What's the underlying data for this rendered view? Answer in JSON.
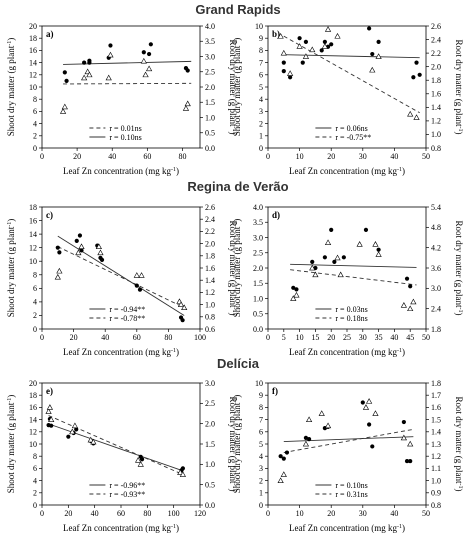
{
  "figure": {
    "sites": [
      "Grand Rapids",
      "Regina de Verão",
      "Delícia"
    ],
    "xlabel": "Leaf Zn concentration (mg kg",
    "xlabel_sup": "-1",
    "xlabel_end": ")",
    "ylabel_left": "Shoot dry matter (g plant",
    "ylabel_left_sup": "-1",
    "ylabel_left_end": ")",
    "ylabel_right": "Root dry matter (g plant",
    "ylabel_right_sup": "-1",
    "ylabel_right_end": ")"
  },
  "chart_data": [
    {
      "panel": "a)",
      "type": "scatter",
      "site": "Grand Rapids",
      "xlim": [
        0,
        90
      ],
      "xticks": [
        0,
        20,
        40,
        60,
        80
      ],
      "ylim": [
        0,
        20
      ],
      "yticks": [
        0,
        2,
        4,
        6,
        8,
        10,
        12,
        14,
        16,
        18,
        20
      ],
      "y2lim": [
        0,
        4.0
      ],
      "y2ticks": [
        "0.0",
        "0.5",
        "1.0",
        "1.5",
        "2.0",
        "2.5",
        "3.0",
        "3.5",
        "4.0"
      ],
      "shoot": {
        "marker": "filled-circle",
        "points": [
          [
            13,
            12.4
          ],
          [
            14,
            11.0
          ],
          [
            24,
            14.0
          ],
          [
            27,
            14.3
          ],
          [
            27,
            14.0
          ],
          [
            38,
            14.8
          ],
          [
            39,
            16.8
          ],
          [
            58,
            15.7
          ],
          [
            61,
            15.4
          ],
          [
            62,
            17.0
          ],
          [
            82,
            13.1
          ],
          [
            83,
            12.7
          ]
        ]
      },
      "root": {
        "marker": "open-triangle",
        "points": [
          [
            12,
            1.2
          ],
          [
            13,
            1.35
          ],
          [
            24,
            2.3
          ],
          [
            26,
            2.5
          ],
          [
            27,
            2.4
          ],
          [
            38,
            2.3
          ],
          [
            39,
            3.05
          ],
          [
            58,
            2.85
          ],
          [
            59,
            2.4
          ],
          [
            61,
            2.6
          ],
          [
            82,
            1.3
          ],
          [
            83,
            1.45
          ]
        ]
      },
      "fits": [
        {
          "style": "dashed",
          "axis": "right",
          "label": "r = 0.01ns",
          "from": [
            12,
            2.1
          ],
          "to": [
            85,
            2.12
          ]
        },
        {
          "style": "solid",
          "axis": "left",
          "label": "r = 0.10ns",
          "from": [
            12,
            13.7
          ],
          "to": [
            85,
            14.2
          ]
        }
      ]
    },
    {
      "panel": "b)",
      "type": "scatter",
      "site": "Grand Rapids",
      "xlim": [
        0,
        50
      ],
      "xticks": [
        0,
        10,
        20,
        30,
        40,
        50
      ],
      "ylim": [
        0,
        10
      ],
      "yticks": [
        0,
        1,
        2,
        3,
        4,
        5,
        6,
        7,
        8,
        9,
        10
      ],
      "y2lim": [
        0.8,
        2.6
      ],
      "y2ticks": [
        "0.8",
        "1.0",
        "1.2",
        "1.4",
        "1.6",
        "1.8",
        "2.0",
        "2.2",
        "2.4",
        "2.6"
      ],
      "shoot": {
        "marker": "filled-circle",
        "points": [
          [
            5,
            7.0
          ],
          [
            5,
            6.3
          ],
          [
            7,
            5.8
          ],
          [
            10,
            9.0
          ],
          [
            11,
            7.0
          ],
          [
            12,
            8.7
          ],
          [
            17,
            8.0
          ],
          [
            18,
            8.7
          ],
          [
            19,
            8.3
          ],
          [
            20,
            8.5
          ],
          [
            32,
            9.8
          ],
          [
            33,
            7.7
          ],
          [
            35,
            8.7
          ],
          [
            46,
            5.8
          ],
          [
            47,
            7.0
          ],
          [
            48,
            6.0
          ]
        ]
      },
      "root": {
        "marker": "open-triangle",
        "points": [
          [
            4,
            2.45
          ],
          [
            5,
            2.2
          ],
          [
            7,
            1.9
          ],
          [
            10,
            2.3
          ],
          [
            12,
            2.15
          ],
          [
            14,
            2.25
          ],
          [
            18,
            2.3
          ],
          [
            19,
            2.55
          ],
          [
            22,
            2.45
          ],
          [
            33,
            1.95
          ],
          [
            35,
            2.15
          ],
          [
            45,
            1.3
          ],
          [
            47,
            1.25
          ]
        ]
      },
      "fits": [
        {
          "style": "solid",
          "axis": "left",
          "label": "r = 0.06ns",
          "from": [
            5,
            7.65
          ],
          "to": [
            48,
            7.4
          ]
        },
        {
          "style": "dashed",
          "axis": "right",
          "label": "r = -0.75**",
          "from": [
            5,
            2.45
          ],
          "to": [
            48,
            1.32
          ]
        }
      ]
    },
    {
      "panel": "c)",
      "type": "scatter",
      "site": "Regina de Verão",
      "xlim": [
        0,
        100
      ],
      "xticks": [
        0,
        20,
        40,
        60,
        80,
        100
      ],
      "ylim": [
        0,
        18
      ],
      "yticks": [
        0,
        2,
        4,
        6,
        8,
        10,
        12,
        14,
        16,
        18
      ],
      "y2lim": [
        0.6,
        2.6
      ],
      "y2ticks": [
        "0.6",
        "0.8",
        "1.0",
        "1.2",
        "1.4",
        "1.6",
        "1.8",
        "2.0",
        "2.2",
        "2.4",
        "2.6"
      ],
      "shoot": {
        "marker": "filled-circle",
        "points": [
          [
            10,
            12.0
          ],
          [
            11,
            11.3
          ],
          [
            22,
            13.0
          ],
          [
            24,
            13.8
          ],
          [
            25,
            11.6
          ],
          [
            35,
            12.3
          ],
          [
            37,
            10.5
          ],
          [
            38,
            10.2
          ],
          [
            60,
            6.4
          ],
          [
            62,
            5.8
          ],
          [
            88,
            1.7
          ],
          [
            89,
            1.3
          ]
        ]
      },
      "root": {
        "marker": "open-triangle",
        "points": [
          [
            10,
            1.45
          ],
          [
            11,
            1.55
          ],
          [
            23,
            1.85
          ],
          [
            25,
            1.95
          ],
          [
            36,
            1.95
          ],
          [
            37,
            1.85
          ],
          [
            60,
            1.48
          ],
          [
            63,
            1.48
          ],
          [
            87,
            1.05
          ],
          [
            88,
            1.0
          ],
          [
            90,
            0.95
          ]
        ]
      },
      "fits": [
        {
          "style": "solid",
          "axis": "left",
          "label": "r = -0.94**",
          "from": [
            10,
            13.7
          ],
          "to": [
            90,
            2.0
          ]
        },
        {
          "style": "dashed",
          "axis": "right",
          "label": "r = -0.78**",
          "from": [
            10,
            1.95
          ],
          "to": [
            90,
            0.95
          ]
        }
      ]
    },
    {
      "panel": "d)",
      "type": "scatter",
      "site": "Regina de Verão",
      "xlim": [
        0,
        50
      ],
      "xticks": [
        0,
        5,
        10,
        15,
        20,
        25,
        30,
        35,
        40,
        45,
        50
      ],
      "ylim": [
        0.0,
        4.0
      ],
      "yticks": [
        "0.0",
        "0.5",
        "1.0",
        "1.5",
        "2.0",
        "2.5",
        "3.0",
        "3.5",
        "4.0"
      ],
      "y2lim": [
        1.8,
        5.4
      ],
      "y2ticks": [
        "1.8",
        "2.4",
        "3.0",
        "3.6",
        "4.2",
        "4.8",
        "5.4"
      ],
      "shoot": {
        "marker": "filled-circle",
        "points": [
          [
            8,
            1.35
          ],
          [
            9,
            1.3
          ],
          [
            14,
            2.2
          ],
          [
            15,
            2.0
          ],
          [
            18,
            2.35
          ],
          [
            20,
            3.25
          ],
          [
            21,
            2.2
          ],
          [
            24,
            2.35
          ],
          [
            31,
            3.25
          ],
          [
            35,
            2.6
          ],
          [
            44,
            1.65
          ],
          [
            45,
            1.4
          ]
        ]
      },
      "root": {
        "marker": "open-triangle",
        "points": [
          [
            8,
            2.7
          ],
          [
            9,
            2.8
          ],
          [
            14,
            3.6
          ],
          [
            15,
            3.4
          ],
          [
            19,
            4.35
          ],
          [
            22,
            3.9
          ],
          [
            23,
            3.4
          ],
          [
            29,
            4.3
          ],
          [
            34,
            4.3
          ],
          [
            35,
            4.0
          ],
          [
            43,
            2.5
          ],
          [
            45,
            2.4
          ],
          [
            46,
            2.6
          ]
        ]
      },
      "fits": [
        {
          "style": "solid",
          "axis": "left",
          "label": "r = 0.03ns",
          "from": [
            7,
            2.12
          ],
          "to": [
            47,
            2.02
          ]
        },
        {
          "style": "dashed",
          "axis": "right",
          "label": "r = 0.18ns",
          "from": [
            7,
            3.55
          ],
          "to": [
            47,
            3.1
          ]
        }
      ]
    },
    {
      "panel": "e)",
      "type": "scatter",
      "site": "Delícia",
      "xlim": [
        0,
        120
      ],
      "xticks": [
        0,
        20,
        40,
        60,
        80,
        100,
        120
      ],
      "ylim": [
        0,
        20
      ],
      "yticks": [
        0,
        2,
        4,
        6,
        8,
        10,
        12,
        14,
        16,
        18,
        20
      ],
      "y2lim": [
        0.0,
        3.0
      ],
      "y2ticks": [
        "0.0",
        "0.5",
        "1.0",
        "1.5",
        "2.0",
        "2.5",
        "3.0"
      ],
      "shoot": {
        "marker": "filled-circle",
        "points": [
          [
            5,
            13.1
          ],
          [
            6,
            14.1
          ],
          [
            7,
            13.0
          ],
          [
            20,
            11.2
          ],
          [
            24,
            11.8
          ],
          [
            26,
            12.4
          ],
          [
            37,
            10.5
          ],
          [
            39,
            10.1
          ],
          [
            75,
            7.9
          ],
          [
            76,
            7.5
          ],
          [
            106,
            5.7
          ],
          [
            107,
            6.0
          ]
        ]
      },
      "root": {
        "marker": "open-triangle",
        "points": [
          [
            5,
            2.3
          ],
          [
            6,
            2.4
          ],
          [
            7,
            2.1
          ],
          [
            23,
            1.8
          ],
          [
            25,
            1.95
          ],
          [
            37,
            1.6
          ],
          [
            39,
            1.55
          ],
          [
            73,
            1.1
          ],
          [
            75,
            1.0
          ],
          [
            105,
            0.8
          ],
          [
            107,
            0.75
          ]
        ]
      },
      "fits": [
        {
          "style": "solid",
          "axis": "left",
          "label": "r = -0.96**",
          "from": [
            5,
            13.3
          ],
          "to": [
            107,
            5.6
          ]
        },
        {
          "style": "dashed",
          "axis": "right",
          "label": "r = -0.93**",
          "from": [
            5,
            2.2
          ],
          "to": [
            107,
            0.75
          ]
        }
      ]
    },
    {
      "panel": "f)",
      "type": "scatter",
      "site": "Delícia",
      "xlim": [
        0,
        50
      ],
      "xticks": [
        0,
        10,
        20,
        30,
        40,
        50
      ],
      "ylim": [
        0,
        10
      ],
      "yticks": [
        0,
        1,
        2,
        3,
        4,
        5,
        6,
        7,
        8,
        9,
        10
      ],
      "y2lim": [
        0.8,
        1.8
      ],
      "y2ticks": [
        "0.8",
        "0.9",
        "1.0",
        "1.1",
        "1.2",
        "1.3",
        "1.4",
        "1.5",
        "1.6",
        "1.7",
        "1.8"
      ],
      "shoot": {
        "marker": "filled-circle",
        "points": [
          [
            4,
            4.0
          ],
          [
            5,
            3.8
          ],
          [
            6,
            4.3
          ],
          [
            12,
            5.5
          ],
          [
            13,
            5.4
          ],
          [
            18,
            6.3
          ],
          [
            19,
            6.4
          ],
          [
            30,
            8.4
          ],
          [
            32,
            6.6
          ],
          [
            33,
            4.8
          ],
          [
            43,
            6.8
          ],
          [
            44,
            3.6
          ],
          [
            45,
            3.6
          ]
        ]
      },
      "root": {
        "marker": "open-triangle",
        "points": [
          [
            4,
            1.0
          ],
          [
            5,
            1.05
          ],
          [
            12,
            1.3
          ],
          [
            13,
            1.5
          ],
          [
            17,
            1.55
          ],
          [
            19,
            1.45
          ],
          [
            31,
            1.6
          ],
          [
            32,
            1.65
          ],
          [
            34,
            1.55
          ],
          [
            43,
            1.35
          ],
          [
            45,
            1.3
          ]
        ]
      },
      "fits": [
        {
          "style": "solid",
          "axis": "left",
          "label": "r = 0.10ns",
          "from": [
            5,
            5.2
          ],
          "to": [
            46,
            5.6
          ]
        },
        {
          "style": "dashed",
          "axis": "right",
          "label": "r = 0.31ns",
          "from": [
            5,
            1.23
          ],
          "to": [
            46,
            1.42
          ]
        }
      ]
    }
  ]
}
